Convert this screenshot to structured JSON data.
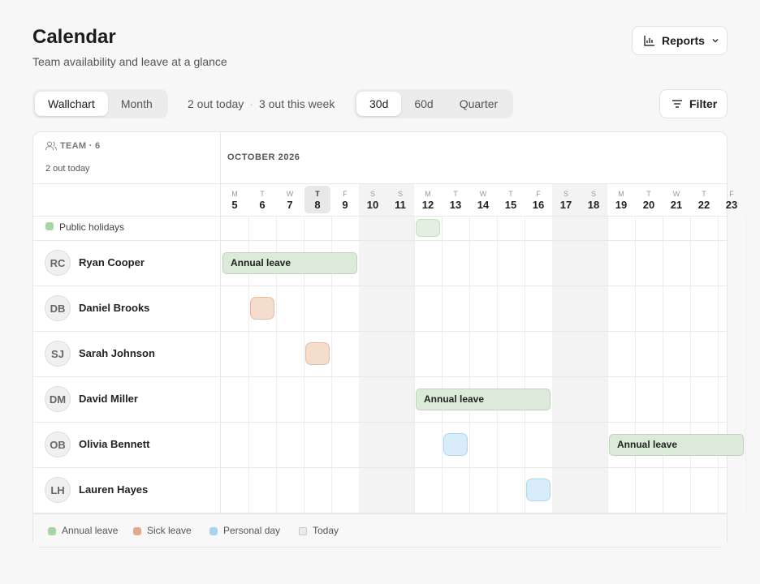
{
  "header": {
    "title": "Calendar",
    "subtitle": "Team availability and leave at a glance",
    "reports_button": "Reports"
  },
  "toolbar": {
    "view_tabs": [
      "Wallchart",
      "Month"
    ],
    "active_view": 0,
    "summary_today": "2 out today",
    "separator": "·",
    "summary_week": "3 out this week",
    "range_tabs": [
      "30d",
      "60d",
      "Quarter"
    ],
    "active_range": 0,
    "filter_button": "Filter"
  },
  "wallchart": {
    "team_label": "TEAM · 6",
    "out_today": "2 out today",
    "month": "OCTOBER 2026",
    "today": 8,
    "days": [
      {
        "weekday": "M",
        "day": 5,
        "weekend": false
      },
      {
        "weekday": "T",
        "day": 6,
        "weekend": false
      },
      {
        "weekday": "W",
        "day": 7,
        "weekend": false
      },
      {
        "weekday": "T",
        "day": 8,
        "weekend": false
      },
      {
        "weekday": "F",
        "day": 9,
        "weekend": false
      },
      {
        "weekday": "S",
        "day": 10,
        "weekend": true
      },
      {
        "weekday": "S",
        "day": 11,
        "weekend": true
      },
      {
        "weekday": "M",
        "day": 12,
        "weekend": false
      },
      {
        "weekday": "T",
        "day": 13,
        "weekend": false
      },
      {
        "weekday": "W",
        "day": 14,
        "weekend": false
      },
      {
        "weekday": "T",
        "day": 15,
        "weekend": false
      },
      {
        "weekday": "F",
        "day": 16,
        "weekend": false
      },
      {
        "weekday": "S",
        "day": 17,
        "weekend": true
      },
      {
        "weekday": "S",
        "day": 18,
        "weekend": true
      },
      {
        "weekday": "M",
        "day": 19,
        "weekend": false
      },
      {
        "weekday": "T",
        "day": 20,
        "weekend": false
      },
      {
        "weekday": "W",
        "day": 21,
        "weekend": false
      },
      {
        "weekday": "T",
        "day": 22,
        "weekend": false
      },
      {
        "weekday": "F",
        "day": 23,
        "weekend": false
      }
    ],
    "holidays_label": "Public holidays",
    "holidays": [
      12
    ],
    "people": [
      {
        "initials": "RC",
        "name": "Ryan Cooper",
        "leave": [
          {
            "type": "annual",
            "start": 5,
            "end": 9,
            "label": "Annual leave"
          }
        ]
      },
      {
        "initials": "DB",
        "name": "Daniel Brooks",
        "leave": [
          {
            "type": "sick",
            "start": 6,
            "end": 6
          }
        ]
      },
      {
        "initials": "SJ",
        "name": "Sarah Johnson",
        "leave": [
          {
            "type": "sick",
            "start": 8,
            "end": 8
          }
        ]
      },
      {
        "initials": "DM",
        "name": "David Miller",
        "leave": [
          {
            "type": "annual",
            "start": 12,
            "end": 16,
            "label": "Annual leave"
          }
        ]
      },
      {
        "initials": "OB",
        "name": "Olivia Bennett",
        "leave": [
          {
            "type": "personal",
            "start": 13,
            "end": 13
          },
          {
            "type": "annual",
            "start": 19,
            "end": 23,
            "label": "Annual leave"
          }
        ]
      },
      {
        "initials": "LH",
        "name": "Lauren Hayes",
        "leave": [
          {
            "type": "personal",
            "start": 16,
            "end": 16
          }
        ]
      }
    ]
  },
  "legend": [
    {
      "type": "annual",
      "label": "Annual leave",
      "color": "#a9d4a3",
      "fill": "#dcebd9",
      "border": "#b8d8b3"
    },
    {
      "type": "sick",
      "label": "Sick leave",
      "color": "#e2a98b",
      "fill": "#f4ddcd",
      "border": "#e6bca4"
    },
    {
      "type": "personal",
      "label": "Personal day",
      "color": "#a9d4f1",
      "fill": "#d8ecf9",
      "border": "#aed6f1"
    },
    {
      "type": "today",
      "label": "Today",
      "color": "#ebebeb",
      "fill": "#e8e8e8",
      "border": "#c8c8c8"
    }
  ]
}
